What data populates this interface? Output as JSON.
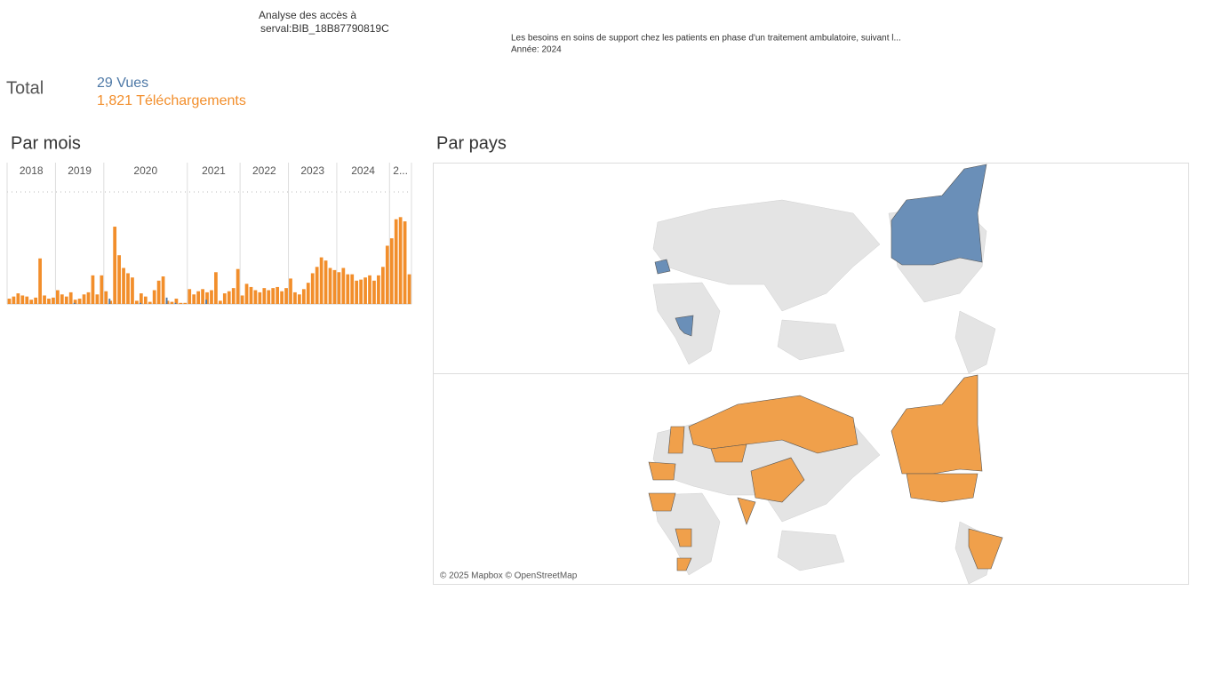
{
  "header": {
    "title": "Analyse des accès à",
    "subtitle": "serval:BIB_18B87790819C",
    "description": "Les besoins en soins de support chez les patients en phase d'un traitement ambulatoire, suivant l...",
    "year": "Année: 2024"
  },
  "totals": {
    "label": "Total",
    "views": "29 Vues",
    "downloads": "1,821 Téléchargements"
  },
  "chart_data": {
    "type": "bar",
    "title": "Par mois",
    "ylim": [
      0,
      115
    ],
    "colors": {
      "downloads": "#f28e2b",
      "views": "#4e79a7"
    },
    "groups": [
      {
        "label": "2018",
        "downloads": [
          5,
          7,
          10,
          8,
          7,
          4,
          6,
          43,
          8,
          5,
          6
        ],
        "views": [
          null,
          null,
          null,
          null,
          null,
          null,
          null,
          null,
          null,
          null,
          null
        ]
      },
      {
        "label": "2019",
        "downloads": [
          13,
          9,
          7,
          11,
          4,
          5,
          9,
          11,
          27,
          9,
          27
        ],
        "views": [
          null,
          null,
          null,
          null,
          1,
          null,
          null,
          null,
          null,
          null,
          null
        ]
      },
      {
        "label": "2020",
        "downloads": [
          12,
          3,
          73,
          46,
          34,
          29,
          25,
          3,
          10,
          7,
          2,
          13,
          22,
          26,
          3,
          2,
          5,
          1,
          1
        ],
        "views": [
          null,
          5,
          null,
          null,
          null,
          null,
          null,
          null,
          1,
          null,
          null,
          null,
          null,
          null,
          6,
          null,
          1,
          null,
          null
        ]
      },
      {
        "label": "2021",
        "downloads": [
          14,
          9,
          12,
          14,
          11,
          13,
          30,
          3,
          10,
          12,
          15,
          33
        ],
        "views": [
          null,
          null,
          null,
          null,
          4,
          null,
          null,
          null,
          null,
          null,
          null,
          null
        ]
      },
      {
        "label": "2022",
        "downloads": [
          8,
          19,
          16,
          13,
          11,
          15,
          13,
          15,
          16,
          12,
          15
        ],
        "views": [
          null,
          null,
          null,
          null,
          null,
          null,
          null,
          null,
          null,
          null,
          null
        ]
      },
      {
        "label": "2023",
        "downloads": [
          24,
          11,
          9,
          14,
          20,
          29,
          35,
          44,
          41,
          34,
          32
        ],
        "views": [
          null,
          null,
          null,
          null,
          null,
          null,
          null,
          null,
          null,
          null,
          null
        ]
      },
      {
        "label": "2024",
        "downloads": [
          30,
          34,
          28,
          28,
          22,
          23,
          25,
          27,
          22,
          27,
          35,
          55
        ],
        "views": [
          null,
          null,
          null,
          null,
          null,
          null,
          null,
          null,
          null,
          null,
          null,
          null
        ]
      },
      {
        "label": "2...",
        "downloads": [
          62,
          80,
          82,
          78,
          28
        ],
        "views": [
          null,
          null,
          null,
          null,
          null
        ]
      }
    ]
  },
  "map": {
    "title": "Par pays",
    "attribution": "© 2025 Mapbox © OpenStreetMap"
  }
}
